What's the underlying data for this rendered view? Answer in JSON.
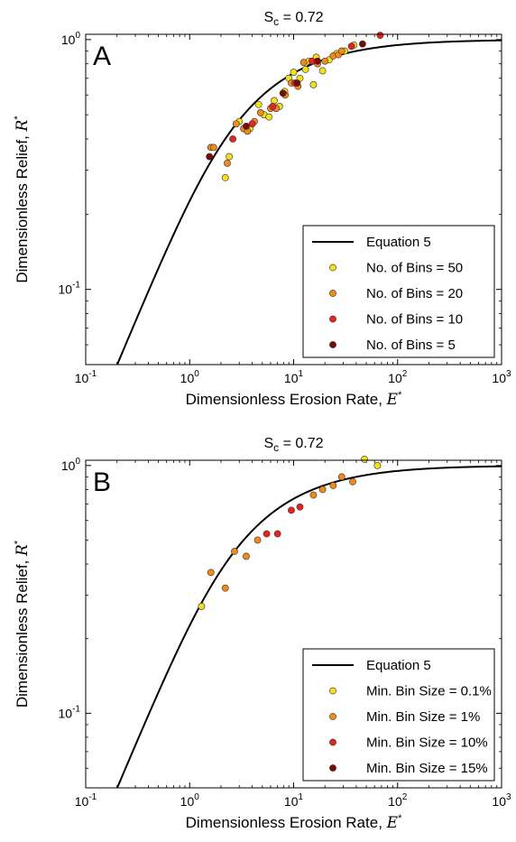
{
  "chart_data": [
    {
      "type": "scatter",
      "panel": "A",
      "title": "S",
      "title_sub": "c",
      "title_value": " = 0.72",
      "xlabel": "Dimensionless Erosion Rate, ",
      "xlabel_symbol": "E",
      "ylabel": "Dimensionless Relief, ",
      "ylabel_symbol": "R",
      "xscale": "log",
      "yscale": "log",
      "xlim": [
        0.1,
        1000
      ],
      "ylim": [
        0.05,
        1.05
      ],
      "x_ticks": [
        {
          "value": 0.1,
          "base": "10",
          "exp": "-1"
        },
        {
          "value": 1,
          "base": "10",
          "exp": "0"
        },
        {
          "value": 10,
          "base": "10",
          "exp": "1"
        },
        {
          "value": 100,
          "base": "10",
          "exp": "2"
        },
        {
          "value": 1000,
          "base": "10",
          "exp": "3"
        }
      ],
      "y_ticks": [
        {
          "value": 0.1,
          "base": "10",
          "exp": "-1"
        },
        {
          "value": 1,
          "base": "10",
          "exp": "0"
        }
      ],
      "legend_position": "lower-right",
      "curve": {
        "name": "Equation 5",
        "color": "#000000"
      },
      "series": [
        {
          "name": "No. of Bins = 50",
          "color": "#f2e01a",
          "points": [
            [
              2.2,
              0.28
            ],
            [
              2.4,
              0.34
            ],
            [
              3.0,
              0.47
            ],
            [
              3.8,
              0.44
            ],
            [
              4.6,
              0.55
            ],
            [
              5.2,
              0.5
            ],
            [
              5.8,
              0.49
            ],
            [
              6.5,
              0.57
            ],
            [
              7.3,
              0.54
            ],
            [
              8.2,
              0.62
            ],
            [
              9.0,
              0.7
            ],
            [
              10.0,
              0.74
            ],
            [
              11.5,
              0.7
            ],
            [
              13.0,
              0.76
            ],
            [
              14.0,
              0.82
            ],
            [
              15.5,
              0.66
            ],
            [
              16.5,
              0.85
            ],
            [
              19.0,
              0.75
            ],
            [
              22.0,
              0.83
            ],
            [
              26.0,
              0.88
            ],
            [
              31.0,
              0.9
            ],
            [
              38.0,
              0.95
            ]
          ]
        },
        {
          "name": "No. of Bins = 20",
          "color": "#f08a1a",
          "points": [
            [
              1.6,
              0.37
            ],
            [
              1.7,
              0.37
            ],
            [
              2.3,
              0.32
            ],
            [
              2.8,
              0.46
            ],
            [
              3.3,
              0.44
            ],
            [
              3.6,
              0.43
            ],
            [
              4.2,
              0.47
            ],
            [
              4.8,
              0.51
            ],
            [
              6.0,
              0.53
            ],
            [
              6.8,
              0.53
            ],
            [
              8.3,
              0.6
            ],
            [
              9.5,
              0.67
            ],
            [
              11.0,
              0.65
            ],
            [
              12.5,
              0.81
            ],
            [
              17.0,
              0.8
            ],
            [
              20.0,
              0.82
            ],
            [
              24.0,
              0.86
            ],
            [
              27.0,
              0.87
            ],
            [
              29.0,
              0.9
            ]
          ]
        },
        {
          "name": "No. of Bins = 10",
          "color": "#e8221e",
          "points": [
            [
              2.6,
              0.4
            ],
            [
              4.0,
              0.46
            ],
            [
              6.3,
              0.54
            ],
            [
              10.3,
              0.67
            ],
            [
              15.0,
              0.82
            ],
            [
              36.0,
              0.94
            ],
            [
              68.0,
              1.04
            ]
          ]
        },
        {
          "name": "No. of Bins = 5",
          "color": "#7a0a06",
          "points": [
            [
              1.55,
              0.34
            ],
            [
              3.5,
              0.45
            ],
            [
              7.9,
              0.61
            ],
            [
              10.8,
              0.67
            ],
            [
              17.0,
              0.82
            ],
            [
              46.0,
              0.96
            ]
          ]
        }
      ]
    },
    {
      "type": "scatter",
      "panel": "B",
      "title": "S",
      "title_sub": "c",
      "title_value": " = 0.72",
      "xlabel": "Dimensionless Erosion Rate, ",
      "xlabel_symbol": "E",
      "ylabel": "Dimensionless Relief, ",
      "ylabel_symbol": "R",
      "xscale": "log",
      "yscale": "log",
      "xlim": [
        0.1,
        1000
      ],
      "ylim": [
        0.05,
        1.05
      ],
      "x_ticks": [
        {
          "value": 0.1,
          "base": "10",
          "exp": "-1"
        },
        {
          "value": 1,
          "base": "10",
          "exp": "0"
        },
        {
          "value": 10,
          "base": "10",
          "exp": "1"
        },
        {
          "value": 100,
          "base": "10",
          "exp": "2"
        },
        {
          "value": 1000,
          "base": "10",
          "exp": "3"
        }
      ],
      "y_ticks": [
        {
          "value": 0.1,
          "base": "10",
          "exp": "-1"
        },
        {
          "value": 1,
          "base": "10",
          "exp": "0"
        }
      ],
      "legend_position": "lower-right",
      "curve": {
        "name": "Equation 5",
        "color": "#000000"
      },
      "series": [
        {
          "name": "Min. Bin Size = 0.1%",
          "color": "#f2e01a",
          "points": [
            [
              1.3,
              0.27
            ],
            [
              48.0,
              1.06
            ],
            [
              64.0,
              1.0
            ]
          ]
        },
        {
          "name": "Min. Bin Size = 1%",
          "color": "#f08a1a",
          "points": [
            [
              1.6,
              0.37
            ],
            [
              2.2,
              0.32
            ],
            [
              2.7,
              0.45
            ],
            [
              3.5,
              0.43
            ],
            [
              4.5,
              0.5
            ],
            [
              15.5,
              0.76
            ],
            [
              19.0,
              0.8
            ],
            [
              24.0,
              0.83
            ],
            [
              29.0,
              0.9
            ],
            [
              37.0,
              0.86
            ]
          ]
        },
        {
          "name": "Min. Bin Size = 10%",
          "color": "#e8221e",
          "points": [
            [
              5.5,
              0.53
            ],
            [
              7.0,
              0.53
            ],
            [
              9.5,
              0.66
            ],
            [
              11.5,
              0.68
            ]
          ]
        },
        {
          "name": "Min. Bin Size = 15%",
          "color": "#7a0a06",
          "points": []
        }
      ]
    }
  ]
}
